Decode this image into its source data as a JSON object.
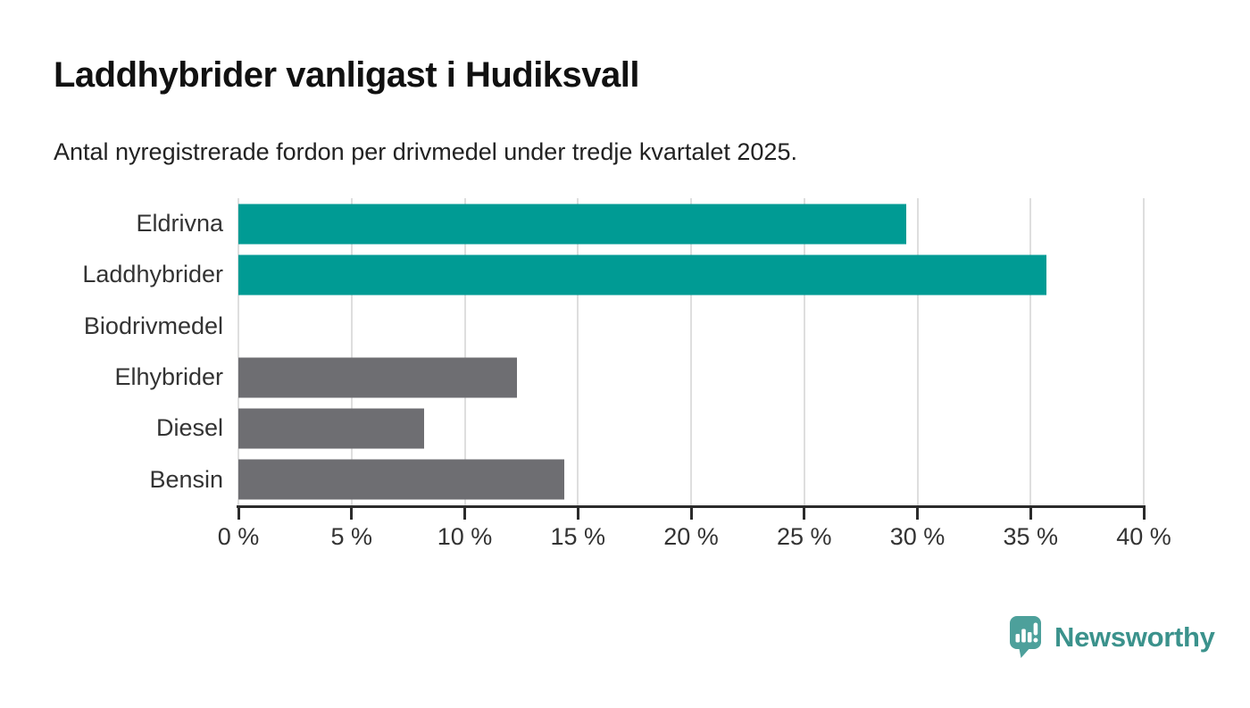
{
  "header": {
    "title": "Laddhybrider vanligast i Hudiksvall",
    "subtitle": "Antal nyregistrerade fordon per drivmedel under tredje kvartalet 2025."
  },
  "chart_data": {
    "type": "bar",
    "orientation": "horizontal",
    "title": "Laddhybrider vanligast i Hudiksvall",
    "subtitle": "Antal nyregistrerade fordon per drivmedel under tredje kvartalet 2025.",
    "categories": [
      "Eldrivna",
      "Laddhybrider",
      "Biodrivmedel",
      "Elhybrider",
      "Diesel",
      "Bensin"
    ],
    "values": [
      29.5,
      35.7,
      0,
      12.3,
      8.2,
      14.4
    ],
    "unit": "%",
    "bar_colors": [
      "#009B94",
      "#009B94",
      "#009B94",
      "#6E6E72",
      "#6E6E72",
      "#6E6E72"
    ],
    "xlabel": "",
    "ylabel": "",
    "xlim": [
      0,
      40
    ],
    "x_ticks": [
      0,
      5,
      10,
      15,
      20,
      25,
      30,
      35,
      40
    ],
    "x_tick_labels": [
      "0 %",
      "5 %",
      "10 %",
      "15 %",
      "20 %",
      "25 %",
      "30 %",
      "35 %",
      "40 %"
    ],
    "grid": "vertical",
    "legend": "none"
  },
  "branding": {
    "logo_text": "Newsworthy",
    "wordmark_color": "#3B928C",
    "icon_color": "#4DA09B"
  },
  "colors": {
    "accent_teal": "#009B94",
    "neutral_gray": "#6E6E72",
    "gridline": "#DEDEDE",
    "axis": "#2B2B2B",
    "label_text": "#333333",
    "title_text": "#111111"
  }
}
